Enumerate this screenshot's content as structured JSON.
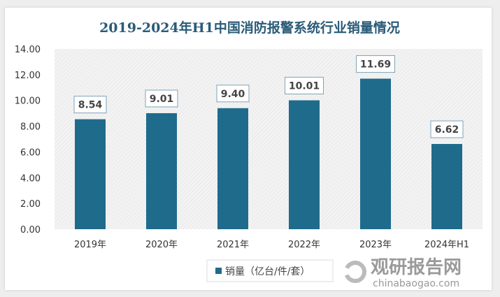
{
  "chart_data": {
    "type": "bar",
    "title": "2019-2024年H1中国消防报警系统行业销量情况",
    "categories": [
      "2019年",
      "2020年",
      "2021年",
      "2022年",
      "2023年",
      "2024年H1"
    ],
    "series": [
      {
        "name": "销量（亿台/件/套）",
        "values": [
          8.54,
          9.01,
          9.4,
          10.01,
          11.69,
          6.62
        ],
        "color": "#1f6b8c"
      }
    ],
    "data_labels": [
      "8.54",
      "9.01",
      "9.40",
      "10.01",
      "11.69",
      "6.62"
    ],
    "yticks": [
      "0.00",
      "2.00",
      "4.00",
      "6.00",
      "8.00",
      "10.00",
      "12.00",
      "14.00"
    ],
    "ylim": [
      0,
      14
    ],
    "grid": false,
    "legend_placement": "bottom-left",
    "watermark": {
      "brand": "观研报告网",
      "url": "chinabaogao.com"
    }
  }
}
